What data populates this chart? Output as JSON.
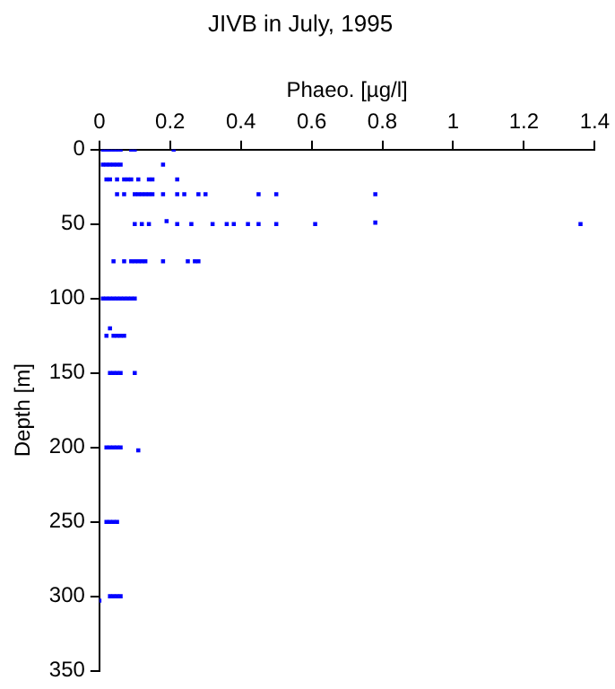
{
  "chart_data": {
    "type": "scatter",
    "title": "JIVB in July, 1995",
    "xlabel": "Phaeo. [µg/l]",
    "ylabel": "Depth [m]",
    "xlim": [
      0,
      1.4
    ],
    "xticks": [
      0,
      0.2,
      0.4,
      0.6,
      0.8,
      1,
      1.2,
      1.4
    ],
    "ylim": [
      350,
      0
    ],
    "yticks": [
      0,
      50,
      100,
      150,
      200,
      250,
      300,
      350
    ],
    "marker": "square",
    "grid": false,
    "legend": false,
    "series": [
      {
        "color": "#0000ff",
        "x": [
          0.01,
          0.02,
          0.03,
          0.04,
          0.05,
          0.06,
          0.09,
          0.1,
          0.21,
          0.01,
          0.02,
          0.03,
          0.04,
          0.05,
          0.06,
          0.18,
          0.02,
          0.03,
          0.05,
          0.07,
          0.08,
          0.09,
          0.11,
          0.14,
          0.15,
          0.22,
          0.05,
          0.07,
          0.1,
          0.11,
          0.12,
          0.13,
          0.14,
          0.15,
          0.18,
          0.22,
          0.24,
          0.28,
          0.3,
          0.45,
          0.5,
          0.78,
          0.1,
          0.12,
          0.14,
          0.19,
          0.22,
          0.26,
          0.32,
          0.36,
          0.38,
          0.42,
          0.45,
          0.5,
          0.61,
          0.78,
          1.36,
          0.04,
          0.07,
          0.09,
          0.1,
          0.11,
          0.12,
          0.13,
          0.18,
          0.25,
          0.27,
          0.28,
          0.01,
          0.02,
          0.03,
          0.04,
          0.05,
          0.06,
          0.07,
          0.08,
          0.09,
          0.1,
          0.03,
          0.02,
          0.04,
          0.05,
          0.06,
          0.07,
          0.03,
          0.04,
          0.05,
          0.06,
          0.1,
          0.02,
          0.03,
          0.04,
          0.05,
          0.06,
          0.11,
          0.02,
          0.03,
          0.04,
          0.05,
          0.0,
          0.03,
          0.04,
          0.05,
          0.06
        ],
        "values": [
          0,
          0,
          0,
          0,
          0,
          0,
          0,
          0,
          0,
          10,
          10,
          10,
          10,
          10,
          10,
          10,
          20,
          20,
          20,
          20,
          20,
          20,
          20,
          20,
          20,
          20,
          30,
          30,
          30,
          30,
          30,
          30,
          30,
          30,
          30,
          30,
          30,
          30,
          30,
          30,
          30,
          30,
          50,
          50,
          50,
          48,
          50,
          50,
          50,
          50,
          50,
          50,
          50,
          50,
          50,
          49,
          50,
          75,
          75,
          75,
          75,
          75,
          75,
          75,
          75,
          75,
          75,
          75,
          100,
          100,
          100,
          100,
          100,
          100,
          100,
          100,
          100,
          100,
          120,
          125,
          125,
          125,
          125,
          125,
          150,
          150,
          150,
          150,
          150,
          200,
          200,
          200,
          200,
          200,
          202,
          250,
          250,
          250,
          250,
          303,
          300,
          300,
          300,
          300
        ]
      }
    ]
  }
}
